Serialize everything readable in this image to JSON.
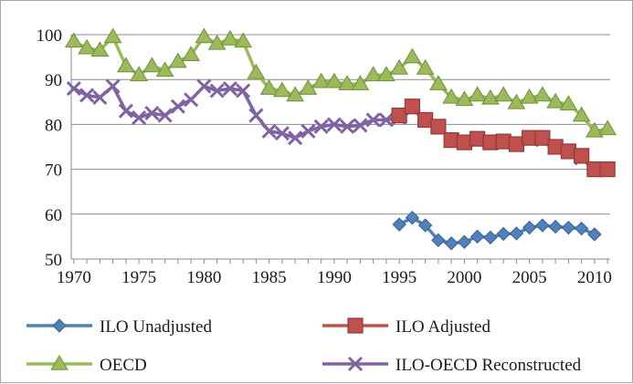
{
  "chart_data": {
    "type": "line",
    "title": "",
    "xlabel": "",
    "ylabel": "",
    "xlim": [
      1970,
      2011
    ],
    "ylim": [
      50,
      100
    ],
    "yticks": [
      50,
      60,
      70,
      80,
      90,
      100
    ],
    "xticks": [
      1970,
      1975,
      1980,
      1985,
      1990,
      1995,
      2000,
      2005,
      2010
    ],
    "grid": "horizontal",
    "legend_placement": "bottom",
    "series": [
      {
        "name": "ILO  Unadjusted",
        "color": "#4f81bd",
        "marker": "diamond",
        "x": [
          1995,
          1996,
          1997,
          1998,
          1999,
          2000,
          2001,
          2002,
          2003,
          2004,
          2005,
          2006,
          2007,
          2008,
          2009,
          2010
        ],
        "y": [
          57.7,
          59.2,
          57.5,
          54.2,
          53.5,
          53.8,
          55.0,
          54.8,
          55.6,
          55.7,
          57.0,
          57.5,
          57.2,
          57.0,
          56.8,
          55.5
        ]
      },
      {
        "name": "ILO Adjusted",
        "color": "#c0504d",
        "marker": "square",
        "x": [
          1995,
          1996,
          1997,
          1998,
          1999,
          2000,
          2001,
          2002,
          2003,
          2004,
          2005,
          2006,
          2007,
          2008,
          2009,
          2010,
          2011
        ],
        "y": [
          82.0,
          84.0,
          81.0,
          79.5,
          76.5,
          76.0,
          76.8,
          76.0,
          76.2,
          75.6,
          77.0,
          77.0,
          75.0,
          74.0,
          73.0,
          70.0,
          70.0
        ]
      },
      {
        "name": "OECD",
        "color": "#9bbb59",
        "marker": "triangle",
        "x": [
          1970,
          1971,
          1972,
          1973,
          1974,
          1975,
          1976,
          1977,
          1978,
          1979,
          1980,
          1981,
          1982,
          1983,
          1984,
          1985,
          1986,
          1987,
          1988,
          1989,
          1990,
          1991,
          1992,
          1993,
          1994,
          1995,
          1996,
          1997,
          1998,
          1999,
          2000,
          2001,
          2002,
          2003,
          2004,
          2005,
          2006,
          2007,
          2008,
          2009,
          2010,
          2011
        ],
        "y": [
          98.5,
          97.0,
          96.5,
          99.5,
          93.0,
          91.0,
          93.0,
          92.0,
          94.0,
          95.5,
          99.5,
          98.0,
          99.0,
          98.5,
          91.5,
          88.0,
          87.5,
          86.5,
          88.0,
          89.5,
          89.5,
          89.0,
          89.0,
          91.0,
          91.0,
          92.5,
          95.0,
          92.5,
          89.0,
          86.0,
          85.5,
          86.5,
          85.8,
          86.5,
          84.8,
          86.0,
          86.5,
          85.0,
          84.5,
          82.0,
          78.5,
          79.0
        ]
      },
      {
        "name": "ILO-OECD Reconstructed",
        "color": "#8064a2",
        "marker": "x",
        "x": [
          1970,
          1971,
          1972,
          1973,
          1974,
          1975,
          1976,
          1977,
          1978,
          1979,
          1980,
          1981,
          1982,
          1983,
          1984,
          1985,
          1986,
          1987,
          1988,
          1989,
          1990,
          1991,
          1992,
          1993,
          1994,
          1995,
          1996,
          1997,
          1998,
          1999,
          2000,
          2001,
          2002,
          2003,
          2004,
          2005,
          2006,
          2007,
          2008,
          2009,
          2010,
          2011
        ],
        "y": [
          88.0,
          86.5,
          86.0,
          88.5,
          83.0,
          81.5,
          82.5,
          82.0,
          84.0,
          85.5,
          88.5,
          87.5,
          88.0,
          87.5,
          82.0,
          78.5,
          78.0,
          77.0,
          78.5,
          79.5,
          80.0,
          79.5,
          79.8,
          81.0,
          81.0,
          81.5,
          83.5,
          81.0,
          79.5,
          76.5,
          76.0,
          76.5,
          76.0,
          76.0,
          75.6,
          76.8,
          76.6,
          75.0,
          74.0,
          72.5,
          69.8,
          69.8
        ]
      }
    ]
  }
}
